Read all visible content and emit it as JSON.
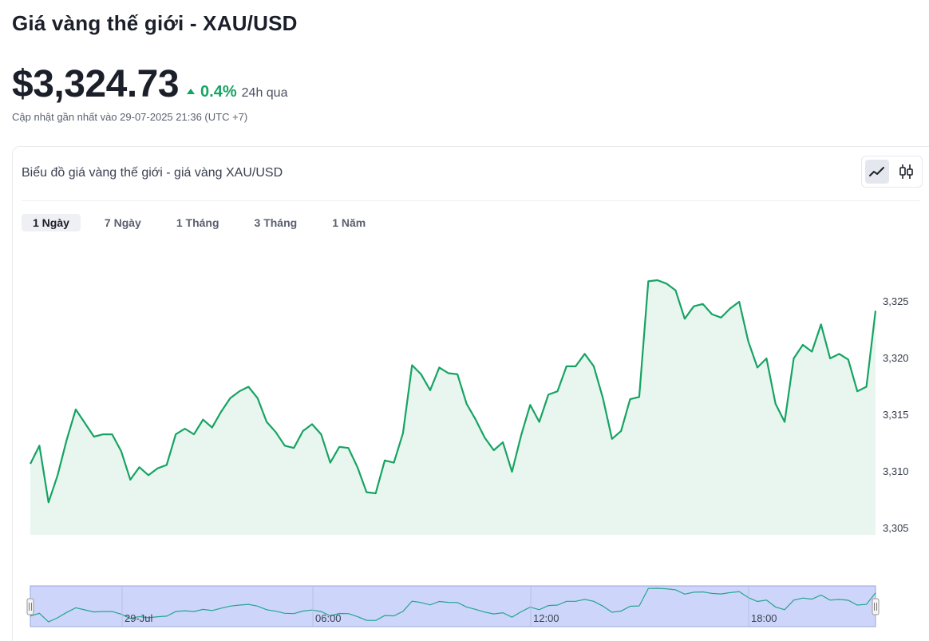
{
  "header": {
    "title": "Giá vàng thế giới - XAU/USD",
    "price": "$3,324.73",
    "change": "0.4%",
    "period": "24h qua",
    "updated": "Cập nhật gần nhất vào 29-07-2025 21:36 (UTC +7)"
  },
  "card": {
    "title": "Biểu đồ giá vàng thế giới - giá vàng XAU/USD",
    "chart_types": [
      "line",
      "candlestick"
    ],
    "active_chart_type": "line"
  },
  "ranges": [
    "1 Ngày",
    "7 Ngày",
    "1 Tháng",
    "3 Tháng",
    "1 Năm"
  ],
  "active_range": "1 Ngày",
  "colors": {
    "line": "#16a363",
    "area": "#e9f6ef",
    "navigator_fill": "#cdd6fa",
    "navigator_line": "#23a48f",
    "up": "#16a363"
  },
  "chart_data": {
    "type": "area",
    "title": "",
    "xlabel": "",
    "ylabel": "",
    "ylim": [
      3305,
      3328
    ],
    "yticks": [
      "3,305",
      "3,310",
      "3,315",
      "3,320",
      "3,325"
    ],
    "navigator_labels": [
      "29-Jul",
      "06:00",
      "12:00",
      "18:00"
    ],
    "series": [
      {
        "values": [
          3310.7,
          3312.3,
          3307.3,
          3309.7,
          3312.8,
          3315.5,
          3314.3,
          3313.1,
          3313.3,
          3313.3,
          3311.8,
          3309.3,
          3310.4,
          3309.7,
          3310.3,
          3310.6,
          3313.3,
          3313.8,
          3313.3,
          3314.6,
          3313.9,
          3315.3,
          3316.5,
          3317.1,
          3317.5,
          3316.5,
          3314.4,
          3313.5,
          3312.3,
          3312.1,
          3313.6,
          3314.2,
          3313.3,
          3310.8,
          3312.2,
          3312.1,
          3310.4,
          3308.2,
          3308.1,
          3311.0,
          3310.8,
          3313.4,
          3319.4,
          3318.6,
          3317.2,
          3319.2,
          3318.7,
          3318.6,
          3316.0,
          3314.6,
          3313.0,
          3311.9,
          3312.6,
          3310.0,
          3313.2,
          3315.9,
          3314.4,
          3316.8,
          3317.1,
          3319.3,
          3319.3,
          3320.4,
          3319.3,
          3316.5,
          3312.9,
          3313.6,
          3316.4,
          3316.6,
          3326.8,
          3326.9,
          3326.6,
          3326.0,
          3323.5,
          3324.6,
          3324.8,
          3323.9,
          3323.6,
          3324.4,
          3325.0,
          3321.5,
          3319.2,
          3320.0,
          3316.0,
          3314.4,
          3320.0,
          3321.2,
          3320.6,
          3323.0,
          3320.0,
          3320.4,
          3319.9,
          3317.1,
          3317.5,
          3324.2
        ]
      }
    ]
  }
}
